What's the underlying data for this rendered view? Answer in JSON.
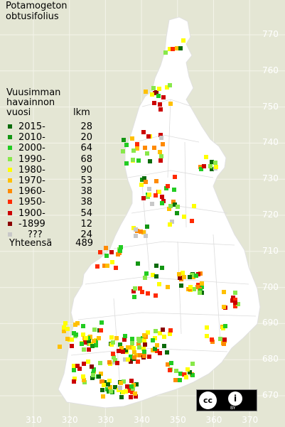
{
  "title": [
    "Potamogeton",
    "obtusifolius"
  ],
  "legend": {
    "heading": [
      "Vuusimman",
      "havainnon",
      "vuosi"
    ],
    "count_heading": "lkm",
    "items": [
      {
        "label": "2015-",
        "count": "28",
        "color": "#0b6b0b"
      },
      {
        "label": "2010-",
        "count": "20",
        "color": "#139613"
      },
      {
        "label": "2000-",
        "count": "64",
        "color": "#22cc22"
      },
      {
        "label": "1990-",
        "count": "68",
        "color": "#88e84a"
      },
      {
        "label": "1980-",
        "count": "90",
        "color": "#ffff00"
      },
      {
        "label": "1970-",
        "count": "53",
        "color": "#ffc000"
      },
      {
        "label": "1960-",
        "count": "38",
        "color": "#ff8a00"
      },
      {
        "label": "1950-",
        "count": "38",
        "color": "#ff2a00"
      },
      {
        "label": "1900-",
        "count": "54",
        "color": "#cc0000"
      },
      {
        "label": "-1899",
        "count": "12",
        "color": "#8a0000"
      },
      {
        "label": "???",
        "count": "24",
        "color": "#c8c8c8"
      }
    ],
    "total_label": "Yhteensä",
    "total_count": "489"
  },
  "y_axis_labels": [
    "770",
    "760",
    "750",
    "740",
    "730",
    "720",
    "710",
    "700",
    "690",
    "680",
    "670"
  ],
  "x_axis_labels": [
    "310",
    "320",
    "330",
    "340",
    "350",
    "360",
    "370"
  ],
  "license": {
    "cc": "cc",
    "by_symbol": "i",
    "by_text": "BY"
  }
}
